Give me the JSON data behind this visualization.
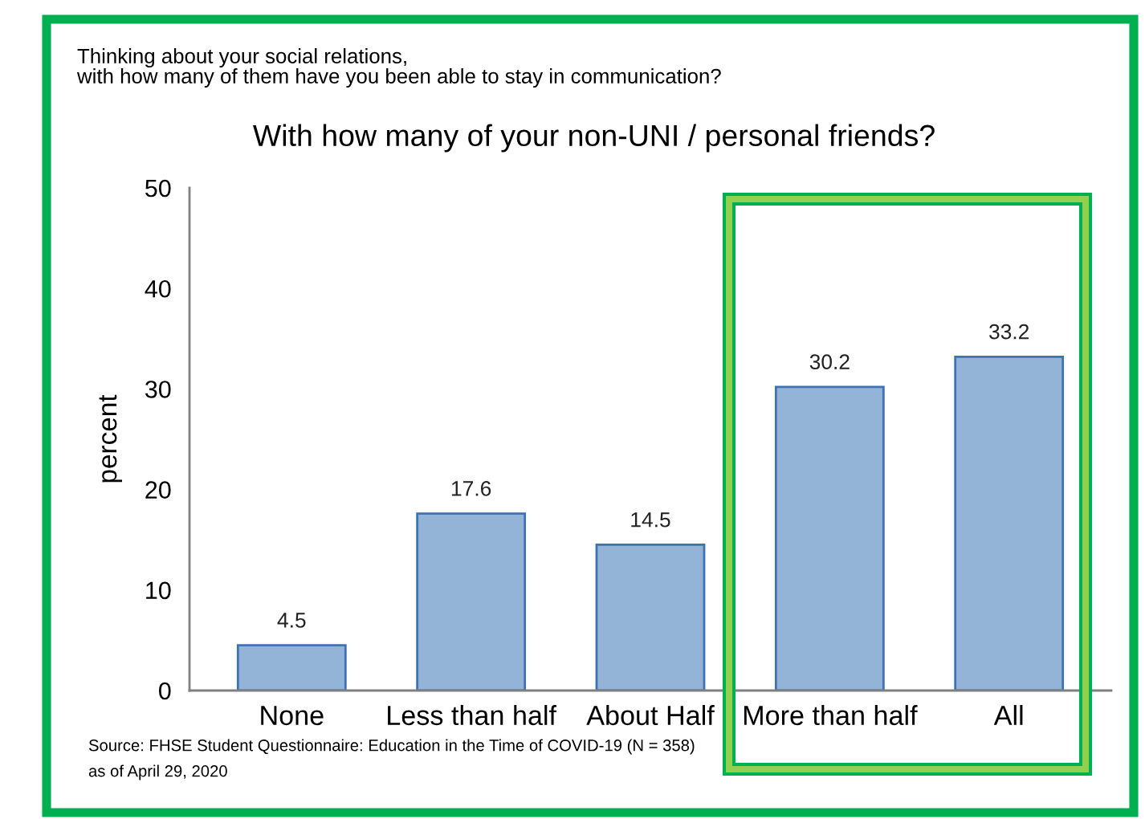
{
  "chart_data": {
    "type": "bar",
    "title": "With how many of your non-UNI / personal friends?",
    "subtitle": "Thinking about your social relations,\nwith how many of them have you been able to stay in communication?",
    "ylabel": "percent",
    "annotations": [
      "Source: FHSE Student Questionnaire: Education in the Time of COVID-19 (N = 358)",
      "as of April 29, 2020"
    ],
    "categories": [
      "None",
      "Less than half",
      "About Half",
      "More than half",
      "All"
    ],
    "values": [
      4.5,
      17.6,
      14.5,
      30.2,
      33.2
    ],
    "color": "#93b3d7",
    "ylim": [
      0,
      50
    ],
    "yticks": [
      0,
      10,
      20,
      30,
      40,
      50
    ],
    "data_labels": true,
    "grid": false,
    "legend": false
  }
}
